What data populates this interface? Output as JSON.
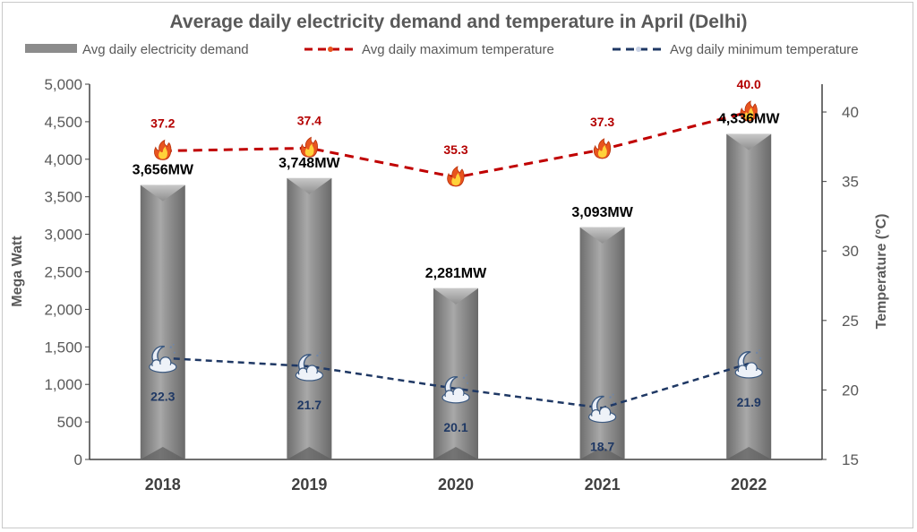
{
  "chart_data": {
    "type": "bar",
    "title": "Average daily electricity demand and temperature in April (Delhi)",
    "categories": [
      "2018",
      "2019",
      "2020",
      "2021",
      "2022"
    ],
    "series": [
      {
        "name": "Avg daily electricity demand",
        "type": "bar",
        "axis": "left",
        "values": [
          3656,
          3748,
          2281,
          3093,
          4336
        ],
        "labels": [
          "3,656MW",
          "3,748MW",
          "2,281MW",
          "3,093MW",
          "4,336MW"
        ],
        "color": "#8c8c8c"
      },
      {
        "name": "Avg daily maximum temperature",
        "type": "line",
        "axis": "right",
        "values": [
          37.2,
          37.4,
          35.3,
          37.3,
          40.0
        ],
        "labels": [
          "37.2",
          "37.4",
          "35.3",
          "37.3",
          "40.0"
        ],
        "marker_icon": "fire-icon",
        "color": "#c00000"
      },
      {
        "name": "Avg daily minimum temperature",
        "type": "line",
        "axis": "right",
        "values": [
          22.3,
          21.7,
          20.1,
          18.7,
          21.9
        ],
        "labels": [
          "22.3",
          "21.7",
          "20.1",
          "18.7",
          "21.9"
        ],
        "marker_icon": "moon-cloud-icon",
        "color": "#1f3864"
      }
    ],
    "ylabel": "Mega Watt",
    "ylim": [
      0,
      5000
    ],
    "yticks": [
      "0",
      "500",
      "1,000",
      "1,500",
      "2,000",
      "2,500",
      "3,000",
      "3,500",
      "4,000",
      "4,500",
      "5,000"
    ],
    "y2label": "Temperature (°C)",
    "y2lim": [
      15,
      42
    ],
    "y2ticks": [
      "15",
      "20",
      "25",
      "30",
      "35",
      "40"
    ],
    "legend": "top",
    "grid": false
  }
}
